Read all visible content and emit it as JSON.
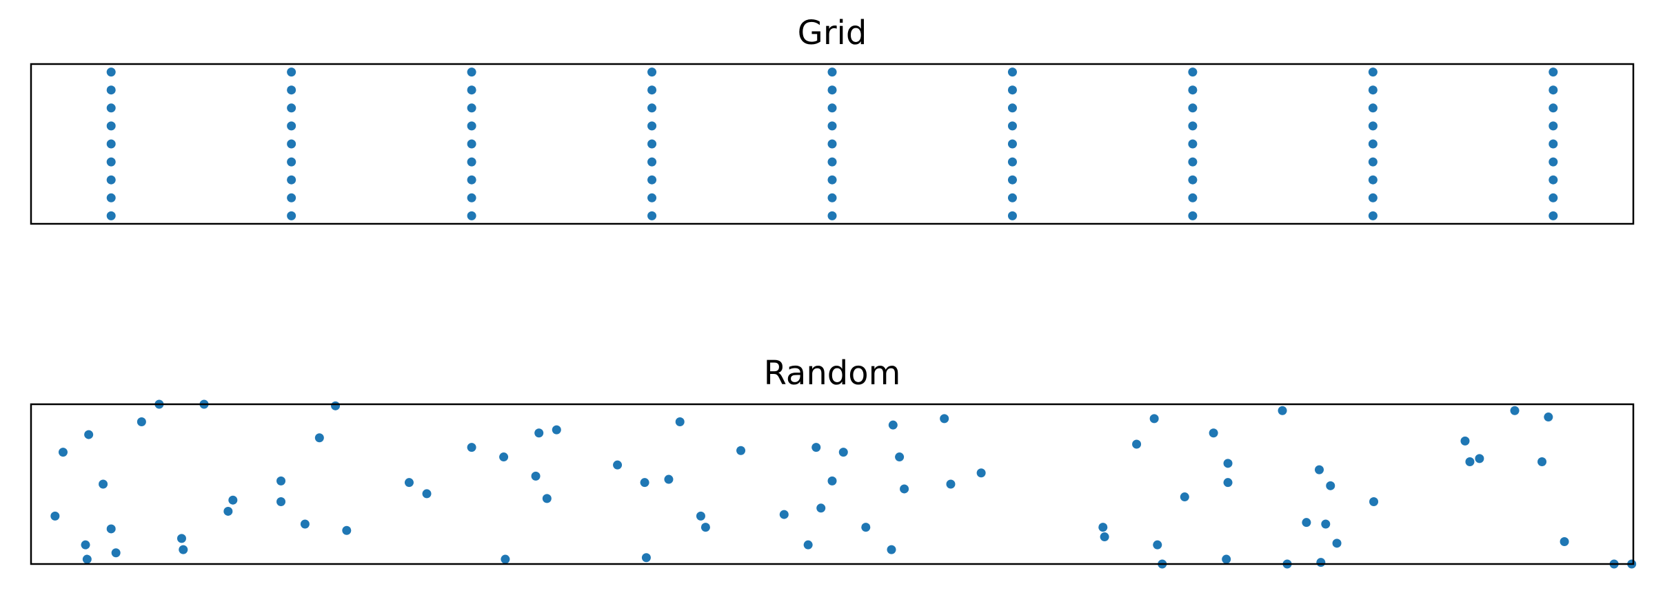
{
  "marker_color": "#1f77b4",
  "chart_data": [
    {
      "type": "scatter",
      "title": "Grid",
      "xlabel": "",
      "ylabel": "",
      "axes_visible": false,
      "grid": false,
      "xlim": [
        0,
        1
      ],
      "ylim": [
        0,
        1
      ],
      "x_values": [
        0.05,
        0.1625,
        0.275,
        0.3875,
        0.5,
        0.6125,
        0.725,
        0.8375,
        0.95
      ],
      "y_values": [
        0.05,
        0.1625,
        0.275,
        0.3875,
        0.5,
        0.6125,
        0.725,
        0.8375,
        0.95
      ]
    },
    {
      "type": "scatter",
      "title": "Random",
      "xlabel": "",
      "ylabel": "",
      "axes_visible": false,
      "grid": false,
      "xlim": [
        0,
        1
      ],
      "ylim": [
        0,
        1
      ],
      "points": [
        [
          0.015,
          0.3
        ],
        [
          0.02,
          0.7
        ],
        [
          0.034,
          0.12
        ],
        [
          0.035,
          0.03
        ],
        [
          0.036,
          0.81
        ],
        [
          0.045,
          0.5
        ],
        [
          0.05,
          0.22
        ],
        [
          0.053,
          0.07
        ],
        [
          0.069,
          0.89
        ],
        [
          0.08,
          1.0
        ],
        [
          0.094,
          0.16
        ],
        [
          0.095,
          0.09
        ],
        [
          0.108,
          1.0
        ],
        [
          0.123,
          0.33
        ],
        [
          0.126,
          0.4
        ],
        [
          0.156,
          0.52
        ],
        [
          0.156,
          0.39
        ],
        [
          0.171,
          0.25
        ],
        [
          0.18,
          0.79
        ],
        [
          0.19,
          0.99
        ],
        [
          0.197,
          0.21
        ],
        [
          0.236,
          0.51
        ],
        [
          0.247,
          0.44
        ],
        [
          0.275,
          0.73
        ],
        [
          0.295,
          0.67
        ],
        [
          0.296,
          0.03
        ],
        [
          0.315,
          0.55
        ],
        [
          0.317,
          0.82
        ],
        [
          0.322,
          0.41
        ],
        [
          0.328,
          0.84
        ],
        [
          0.366,
          0.62
        ],
        [
          0.383,
          0.51
        ],
        [
          0.384,
          0.04
        ],
        [
          0.398,
          0.53
        ],
        [
          0.405,
          0.89
        ],
        [
          0.418,
          0.3
        ],
        [
          0.421,
          0.23
        ],
        [
          0.443,
          0.71
        ],
        [
          0.47,
          0.31
        ],
        [
          0.485,
          0.12
        ],
        [
          0.49,
          0.73
        ],
        [
          0.493,
          0.35
        ],
        [
          0.5,
          0.52
        ],
        [
          0.507,
          0.7
        ],
        [
          0.521,
          0.23
        ],
        [
          0.537,
          0.09
        ],
        [
          0.538,
          0.87
        ],
        [
          0.542,
          0.67
        ],
        [
          0.545,
          0.47
        ],
        [
          0.57,
          0.91
        ],
        [
          0.574,
          0.5
        ],
        [
          0.593,
          0.57
        ],
        [
          0.669,
          0.23
        ],
        [
          0.67,
          0.17
        ],
        [
          0.69,
          0.75
        ],
        [
          0.701,
          0.91
        ],
        [
          0.703,
          0.12
        ],
        [
          0.706,
          0.0
        ],
        [
          0.72,
          0.42
        ],
        [
          0.738,
          0.82
        ],
        [
          0.746,
          0.03
        ],
        [
          0.747,
          0.63
        ],
        [
          0.747,
          0.51
        ],
        [
          0.781,
          0.96
        ],
        [
          0.784,
          0.0
        ],
        [
          0.796,
          0.26
        ],
        [
          0.804,
          0.59
        ],
        [
          0.805,
          0.01
        ],
        [
          0.808,
          0.25
        ],
        [
          0.811,
          0.49
        ],
        [
          0.815,
          0.13
        ],
        [
          0.838,
          0.39
        ],
        [
          0.895,
          0.77
        ],
        [
          0.898,
          0.64
        ],
        [
          0.904,
          0.66
        ],
        [
          0.926,
          0.96
        ],
        [
          0.943,
          0.64
        ],
        [
          0.947,
          0.92
        ],
        [
          0.957,
          0.14
        ],
        [
          0.988,
          0.0
        ],
        [
          0.999,
          0.0
        ]
      ]
    }
  ]
}
